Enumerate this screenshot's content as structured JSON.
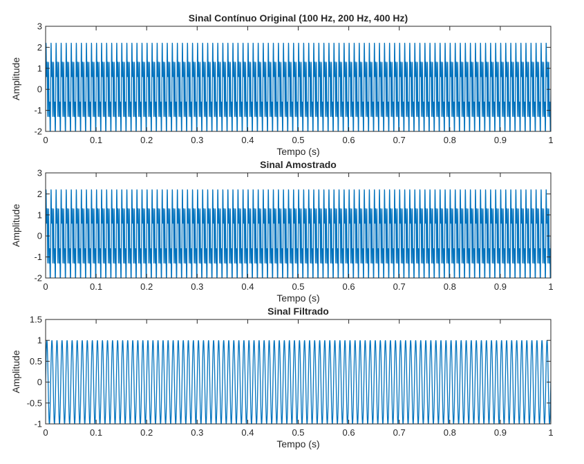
{
  "figure": {
    "background": "#ffffff",
    "line_color": "#0072BD",
    "axis_color": "#262626"
  },
  "chart_data": [
    {
      "type": "line",
      "title": "Sinal Contínuo Original (100 Hz, 200 Hz, 400 Hz)",
      "xlabel": "Tempo (s)",
      "ylabel": "Amplitude",
      "xlim": [
        0,
        1
      ],
      "ylim": [
        -2,
        3
      ],
      "xticks": [
        0,
        0.1,
        0.2,
        0.3,
        0.4,
        0.5,
        0.6,
        0.7,
        0.8,
        0.9,
        1
      ],
      "xtick_labels": [
        "0",
        "0.1",
        "0.2",
        "0.3",
        "0.4",
        "0.5",
        "0.6",
        "0.7",
        "0.8",
        "0.9",
        "1"
      ],
      "yticks": [
        -2,
        -1,
        0,
        1,
        2,
        3
      ],
      "ytick_labels": [
        "-2",
        "-1",
        "0",
        "1",
        "2",
        "3"
      ],
      "grid": false,
      "series": [
        {
          "signal": {
            "components": [
              {
                "frequency_hz": 100,
                "amplitude": 1
              },
              {
                "frequency_hz": 200,
                "amplitude": 1
              },
              {
                "frequency_hz": 400,
                "amplitude": 1
              }
            ]
          }
        }
      ]
    },
    {
      "type": "line",
      "title": "Sinal Amostrado",
      "xlabel": "Tempo (s)",
      "ylabel": "Amplitude",
      "xlim": [
        0,
        1
      ],
      "ylim": [
        -2,
        3
      ],
      "xticks": [
        0,
        0.1,
        0.2,
        0.3,
        0.4,
        0.5,
        0.6,
        0.7,
        0.8,
        0.9,
        1
      ],
      "xtick_labels": [
        "0",
        "0.1",
        "0.2",
        "0.3",
        "0.4",
        "0.5",
        "0.6",
        "0.7",
        "0.8",
        "0.9",
        "1"
      ],
      "yticks": [
        -2,
        -1,
        0,
        1,
        2,
        3
      ],
      "ytick_labels": [
        "-2",
        "-1",
        "0",
        "1",
        "2",
        "3"
      ],
      "grid": false,
      "series": [
        {
          "signal": {
            "components": [
              {
                "frequency_hz": 100,
                "amplitude": 1
              },
              {
                "frequency_hz": 200,
                "amplitude": 1
              },
              {
                "frequency_hz": 400,
                "amplitude": 1
              }
            ]
          }
        }
      ]
    },
    {
      "type": "line",
      "title": "Sinal Filtrado",
      "xlabel": "Tempo (s)",
      "ylabel": "Amplitude",
      "xlim": [
        0,
        1
      ],
      "ylim": [
        -1,
        1.5
      ],
      "xticks": [
        0,
        0.1,
        0.2,
        0.3,
        0.4,
        0.5,
        0.6,
        0.7,
        0.8,
        0.9,
        1
      ],
      "xtick_labels": [
        "0",
        "0.1",
        "0.2",
        "0.3",
        "0.4",
        "0.5",
        "0.6",
        "0.7",
        "0.8",
        "0.9",
        "1"
      ],
      "yticks": [
        -1,
        -0.5,
        0,
        0.5,
        1,
        1.5
      ],
      "ytick_labels": [
        "-1",
        "-0.5",
        "0",
        "0.5",
        "1",
        "1.5"
      ],
      "grid": false,
      "series": [
        {
          "signal": {
            "components": [
              {
                "frequency_hz": 100,
                "amplitude": 1
              }
            ]
          }
        }
      ]
    }
  ]
}
